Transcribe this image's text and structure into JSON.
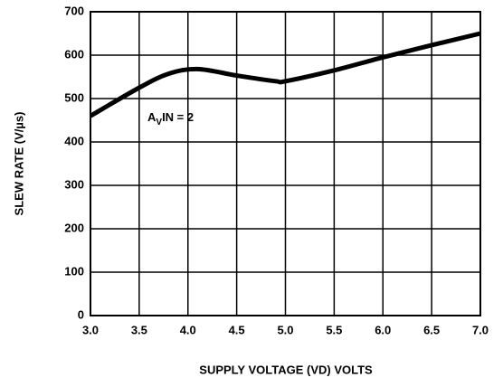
{
  "chart_data": {
    "type": "line",
    "x_label": "SUPPLY VOLTAGE (VD) VOLTS",
    "y_label": "SLEW RATE (V/µs)",
    "annotation": {
      "base": "A",
      "sub": "V",
      "rest": "IN = 2"
    },
    "x": [
      3.0,
      3.5,
      3.8,
      4.1,
      4.5,
      4.9,
      5.0,
      5.5,
      6.0,
      6.5,
      7.0
    ],
    "series": [
      {
        "color": "#000000",
        "values": [
          460,
          525,
          557,
          568,
          553,
          540,
          540,
          565,
          595,
          623,
          650
        ]
      }
    ],
    "xlim": [
      3,
      7
    ],
    "xticks": [
      {
        "value": 3,
        "label": "3.0"
      },
      {
        "value": 3.5,
        "label": "3.5"
      },
      {
        "value": 4,
        "label": "4.0"
      },
      {
        "value": 4.5,
        "label": "4.5"
      },
      {
        "value": 5,
        "label": "5.0"
      },
      {
        "value": 5.5,
        "label": "5.5"
      },
      {
        "value": 6,
        "label": "6.0"
      },
      {
        "value": 6.5,
        "label": "6.5"
      },
      {
        "value": 7,
        "label": "7.0"
      }
    ],
    "ylim": [
      0,
      700
    ],
    "yticks": [
      0,
      100,
      200,
      300,
      400,
      500,
      600,
      700
    ],
    "grid": true
  }
}
